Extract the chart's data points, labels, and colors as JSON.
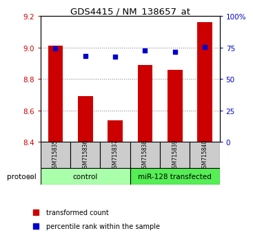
{
  "title": "GDS4415 / NM_138657_at",
  "samples": [
    "GSM715835",
    "GSM715836",
    "GSM715837",
    "GSM715838",
    "GSM715839",
    "GSM715840"
  ],
  "transformed_counts": [
    9.01,
    8.69,
    8.54,
    8.89,
    8.86,
    9.16
  ],
  "percentile_ranks": [
    74.5,
    68.5,
    67.5,
    72.5,
    71.5,
    75.5
  ],
  "ylim_left": [
    8.4,
    9.2
  ],
  "ylim_right": [
    0,
    100
  ],
  "yticks_left": [
    8.4,
    8.6,
    8.8,
    9.0,
    9.2
  ],
  "yticks_right": [
    0,
    25,
    50,
    75,
    100
  ],
  "bar_color": "#cc0000",
  "dot_color": "#0000cc",
  "bar_width": 0.5,
  "control_label": "control",
  "transfected_label": "miR-128 transfected",
  "protocol_label": "protocol",
  "legend_bar_label": "transformed count",
  "legend_dot_label": "percentile rank within the sample",
  "sample_box_color": "#cccccc",
  "control_color": "#aaffaa",
  "transfected_color": "#55ee55",
  "left_axis_color": "#cc0000",
  "right_axis_color": "#0000cc",
  "dotted_line_color": "#888888",
  "right_tick_labels": [
    "0",
    "25",
    "50",
    "75",
    "100%"
  ]
}
